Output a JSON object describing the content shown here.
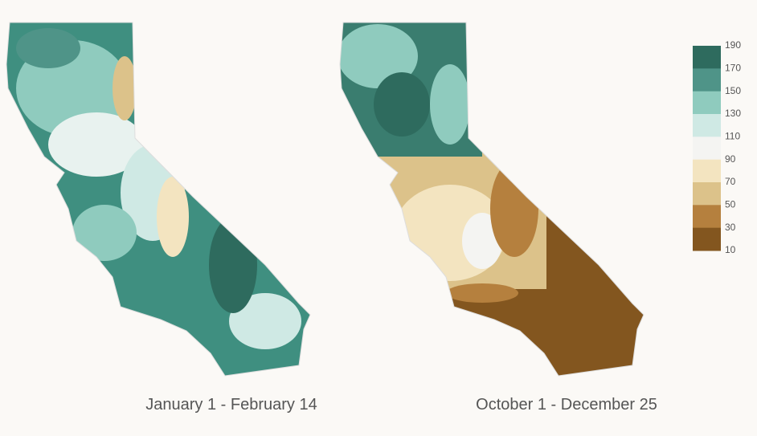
{
  "maps": [
    {
      "caption": "January 1 - February 14"
    },
    {
      "caption": "October 1 - December 25"
    }
  ],
  "legend": {
    "ticks": [
      190,
      170,
      150,
      130,
      110,
      90,
      70,
      50,
      30,
      10
    ],
    "colors": [
      "#2e6b5e",
      "#4f9488",
      "#8fcbbe",
      "#cfe9e4",
      "#f4f4f2",
      "#f3e4c0",
      "#dcc28a",
      "#b5803e",
      "#83561f"
    ]
  }
}
